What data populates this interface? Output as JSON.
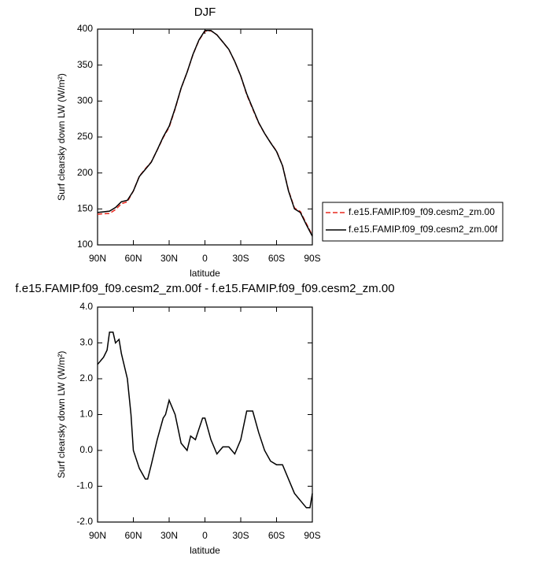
{
  "chart_data": [
    {
      "type": "line",
      "title": "DJF",
      "xlabel": "latitude",
      "ylabel": "Surf clearsky down LW (W/m²)",
      "xlim": [
        90,
        -90
      ],
      "xticks": [
        {
          "value": 90,
          "label": "90N"
        },
        {
          "value": 60,
          "label": "60N"
        },
        {
          "value": 30,
          "label": "30N"
        },
        {
          "value": 0,
          "label": "0"
        },
        {
          "value": -30,
          "label": "30S"
        },
        {
          "value": -60,
          "label": "60S"
        },
        {
          "value": -90,
          "label": "90S"
        }
      ],
      "ylim": [
        100,
        400
      ],
      "yticks": [
        100,
        150,
        200,
        250,
        300,
        350,
        400
      ],
      "legend": "outside-right",
      "series": [
        {
          "name": "f.e15.FAMIP.f09_f09.cesm2_zm.00",
          "color": "#e8281e",
          "linestyle": "dashed",
          "x": [
            90,
            85,
            80,
            75,
            70,
            65,
            60,
            55,
            50,
            45,
            40,
            35,
            30,
            25,
            20,
            15,
            10,
            5,
            0,
            -5,
            -10,
            -15,
            -20,
            -25,
            -30,
            -35,
            -40,
            -45,
            -50,
            -55,
            -60,
            -65,
            -70,
            -75,
            -80,
            -85,
            -90
          ],
          "values": [
            142.6,
            143.4,
            143.7,
            149,
            157.3,
            160,
            175,
            195.5,
            205.8,
            215.4,
            231.7,
            249.1,
            263.6,
            289,
            317.8,
            340,
            364.7,
            384.4,
            397.1,
            397.7,
            392.1,
            381.9,
            371.9,
            355.1,
            334.7,
            308.9,
            288.9,
            269.5,
            255,
            242.3,
            230.4,
            210.4,
            175.8,
            151.2,
            146.4,
            129.6,
            113.2
          ]
        },
        {
          "name": "f.e15.FAMIP.f09_f09.cesm2_zm.00f",
          "color": "#000000",
          "linestyle": "solid",
          "x": [
            90,
            85,
            80,
            75,
            70,
            65,
            60,
            55,
            50,
            45,
            40,
            35,
            30,
            25,
            20,
            15,
            10,
            5,
            0,
            -5,
            -10,
            -15,
            -20,
            -25,
            -30,
            -35,
            -40,
            -45,
            -50,
            -55,
            -60,
            -65,
            -70,
            -75,
            -80,
            -85,
            -90
          ],
          "values": [
            145,
            146,
            147,
            152,
            160,
            162,
            175,
            195,
            205,
            215,
            232,
            250,
            265,
            290,
            318,
            340,
            365,
            385,
            398,
            398,
            392,
            382,
            372,
            355,
            335,
            310,
            290,
            270,
            255,
            242,
            230,
            210,
            175,
            150,
            145,
            128,
            112
          ]
        }
      ]
    },
    {
      "type": "line",
      "title": "f.e15.FAMIP.f09_f09.cesm2_zm.00f - f.e15.FAMIP.f09_f09.cesm2_zm.00",
      "xlabel": "latitude",
      "ylabel": "Surf clearsky down LW (W/m²)",
      "xlim": [
        90,
        -90
      ],
      "xticks": [
        {
          "value": 90,
          "label": "90N"
        },
        {
          "value": 60,
          "label": "60N"
        },
        {
          "value": 30,
          "label": "30N"
        },
        {
          "value": 0,
          "label": "0"
        },
        {
          "value": -30,
          "label": "30S"
        },
        {
          "value": -60,
          "label": "60S"
        },
        {
          "value": -90,
          "label": "90S"
        }
      ],
      "ylim": [
        -2,
        4
      ],
      "yticks": [
        {
          "value": -2,
          "label": "-2.0"
        },
        {
          "value": -1,
          "label": "-1.0"
        },
        {
          "value": 0,
          "label": "0.0"
        },
        {
          "value": 1,
          "label": "1.0"
        },
        {
          "value": 2,
          "label": "2.0"
        },
        {
          "value": 3,
          "label": "3.0"
        },
        {
          "value": 4,
          "label": "4.0"
        }
      ],
      "series": [
        {
          "color": "#000000",
          "linestyle": "solid",
          "x": [
            90,
            85,
            82,
            80,
            77,
            75,
            72,
            70,
            65,
            62,
            60,
            55,
            50,
            48,
            45,
            40,
            35,
            33,
            30,
            25,
            20,
            15,
            12,
            8,
            5,
            2,
            0,
            -5,
            -10,
            -15,
            -20,
            -25,
            -30,
            -35,
            -40,
            -45,
            -50,
            -55,
            -60,
            -65,
            -70,
            -75,
            -80,
            -85,
            -88,
            -90
          ],
          "values": [
            2.4,
            2.6,
            2.8,
            3.3,
            3.3,
            3.0,
            3.1,
            2.7,
            2.0,
            1.0,
            0.0,
            -0.5,
            -0.8,
            -0.8,
            -0.4,
            0.3,
            0.9,
            1.0,
            1.4,
            1.0,
            0.2,
            0.0,
            0.4,
            0.3,
            0.6,
            0.9,
            0.9,
            0.3,
            -0.1,
            0.1,
            0.1,
            -0.1,
            0.3,
            1.1,
            1.1,
            0.5,
            0.0,
            -0.3,
            -0.4,
            -0.4,
            -0.8,
            -1.2,
            -1.4,
            -1.6,
            -1.6,
            -1.2
          ]
        }
      ]
    }
  ]
}
